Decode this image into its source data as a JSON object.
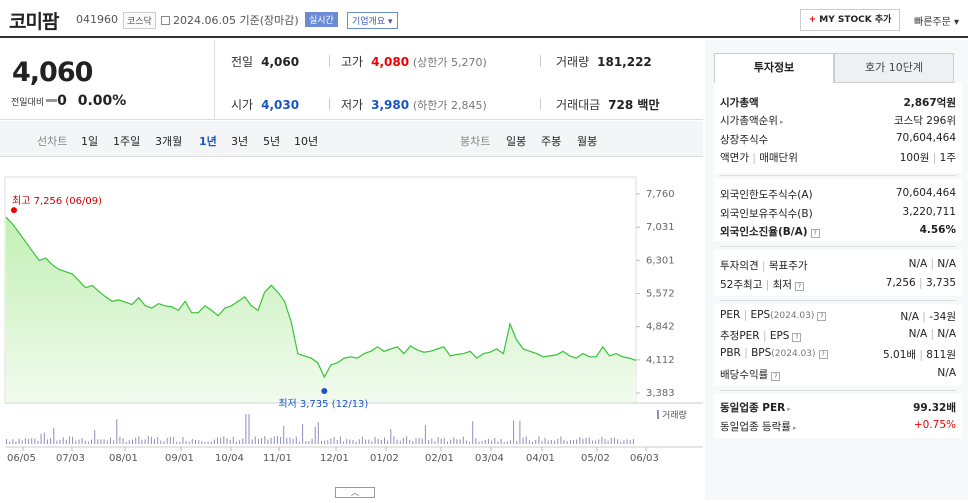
{
  "header": {
    "name": "코미팜",
    "code": "041960",
    "market": "코스닥",
    "date": "2024.06.05 기준(장마감)",
    "live": "실시간",
    "corp_info": "기업개요",
    "mystock_plus": "+",
    "mystock": "MY STOCK 추가",
    "quick_order": "빠른주문"
  },
  "price": {
    "current": "4,060",
    "change_label": "전일대비",
    "change": "0",
    "change_pct": "0.00%"
  },
  "stats": {
    "prev_label": "전일",
    "prev": "4,060",
    "high_label": "고가",
    "high": "4,080",
    "upper_limit": "(상한가 5,270)",
    "volume_label": "거래량",
    "volume": "181,222",
    "open_label": "시가",
    "open": "4,030",
    "low_label": "저가",
    "low": "3,980",
    "lower_limit": "(하한가 2,845)",
    "amount_label": "거래대금",
    "amount": "728 백만"
  },
  "tabs": {
    "line_chart": "선차트",
    "d1": "1일",
    "w1": "1주일",
    "m3": "3개월",
    "y1": "1년",
    "y3": "3년",
    "y5": "5년",
    "y10": "10년",
    "candle_chart": "봉차트",
    "daily": "일봉",
    "weekly": "주봉",
    "monthly": "월봉"
  },
  "chart_data": {
    "type": "area",
    "yticks": [
      "7,760",
      "7,031",
      "6,301",
      "5,572",
      "4,842",
      "4,112",
      "3,383"
    ],
    "ylim": [
      3383,
      7760
    ],
    "xticks": [
      "06/05",
      "07/03",
      "08/01",
      "09/01",
      "10/04",
      "11/01",
      "12/01",
      "01/02",
      "02/01",
      "03/04",
      "04/01",
      "05/02",
      "06/03"
    ],
    "max_label": "최고 7,256 (06/09)",
    "min_label": "최저 3,735 (12/13)",
    "volume_label": "거래량",
    "series": [
      {
        "values": [
          7250,
          7100,
          6900,
          6700,
          6500,
          6300,
          6350,
          6200,
          6100,
          6050,
          6000,
          5850,
          5700,
          5750,
          5620,
          5500,
          5400,
          5430,
          5380,
          5330,
          5480,
          5300,
          5250,
          5350,
          5300,
          5280,
          5200,
          5400,
          5150,
          5150,
          5300,
          5200,
          5080,
          5250,
          5300,
          5400,
          5500,
          5300,
          5200,
          5600,
          5750,
          5600,
          5400,
          4950,
          4250,
          4200,
          4150,
          4050,
          3735,
          4000,
          4050,
          4150,
          4180,
          4150,
          4250,
          4300,
          4400,
          4300,
          4350,
          4400,
          4250,
          4420,
          4330,
          4280,
          4300,
          4350,
          4400,
          4200,
          4230,
          4250,
          4300,
          4150,
          4250,
          4280,
          4350,
          4250,
          4900,
          4550,
          4350,
          4300,
          4250,
          4180,
          4200,
          4220,
          4300,
          4200,
          4150,
          4250,
          4180,
          4180,
          4400,
          4200,
          4250,
          4180,
          4150,
          4100
        ]
      }
    ],
    "colors": {
      "line": "#39c239",
      "fill_top": "#c3efb4",
      "fill_bottom": "#f1fbee",
      "high_dot": "#e00",
      "low_dot": "#1a55c8",
      "volume": "#8d8dc0"
    }
  },
  "invest": {
    "tab_info": "투자정보",
    "tab_hoga": "호가 10단계",
    "mcap_label": "시가총액",
    "mcap": "2,867억원",
    "mcap_rank_label": "시가총액순위",
    "mcap_rank": "코스닥 296위",
    "shares_label": "상장주식수",
    "shares": "70,604,464",
    "par_label": "액면가",
    "unit_label": "매매단위",
    "par": "100원",
    "unit": "1주",
    "foreign_limit_label": "외국인한도주식수(A)",
    "foreign_limit": "70,604,464",
    "foreign_hold_label": "외국인보유주식수(B)",
    "foreign_hold": "3,220,711",
    "foreign_ratio_label": "외국인소진율(B/A)",
    "foreign_ratio": "4.56%",
    "opinion_label": "투자의견",
    "target_label": "목표주가",
    "opinion": "N/A",
    "target": "N/A",
    "w52_label": "52주최고",
    "w52_low_label": "최저",
    "w52_high": "7,256",
    "w52_low": "3,735",
    "per_label": "PER",
    "eps_label": "EPS",
    "eps_period": "(2024.03)",
    "per": "N/A",
    "eps": "-34원",
    "est_per_label": "추정PER",
    "est_eps_label": "EPS",
    "est_per": "N/A",
    "est_eps": "N/A",
    "pbr_label": "PBR",
    "bps_label": "BPS",
    "bps_period": "(2024.03)",
    "pbr": "5.01배",
    "bps": "811원",
    "div_label": "배당수익률",
    "div": "N/A",
    "ind_per_label": "동일업종 PER",
    "ind_per": "99.32배",
    "ind_rate_label": "동일업종 등락률",
    "ind_rate": "+0.75%"
  }
}
